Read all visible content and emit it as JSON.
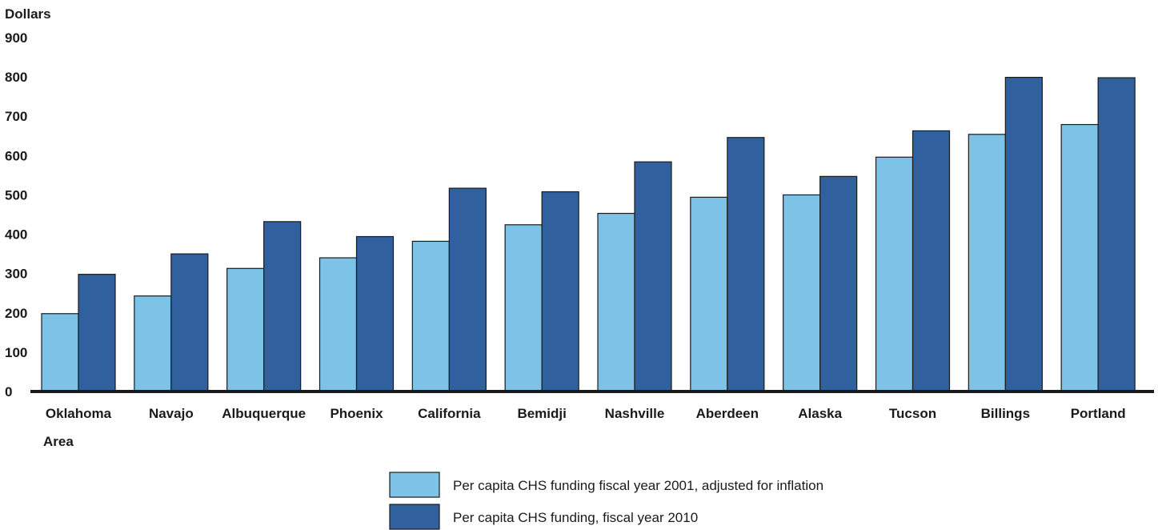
{
  "chart_data": {
    "type": "bar",
    "ylabel": "Dollars",
    "xlabel": "Area",
    "ylim": [
      0,
      900
    ],
    "yticks": [
      0,
      100,
      200,
      300,
      400,
      500,
      600,
      700,
      800,
      900
    ],
    "categories": [
      "Oklahoma",
      "Navajo",
      "Albuquerque",
      "Phoenix",
      "California",
      "Bemidji",
      "Nashville",
      "Aberdeen",
      "Alaska",
      "Tucson",
      "Billings",
      "Portland"
    ],
    "series": [
      {
        "name": "Per capita CHS funding fiscal year 2001, adjusted for inflation",
        "color": "#7dc3e8",
        "values": [
          198,
          243,
          313,
          340,
          382,
          424,
          453,
          494,
          500,
          596,
          654,
          679
        ]
      },
      {
        "name": "Per capita CHS funding, fiscal year 2010",
        "color": "#30609e",
        "values": [
          298,
          350,
          432,
          394,
          517,
          508,
          584,
          646,
          547,
          663,
          799,
          798
        ]
      }
    ],
    "grid": false,
    "legend_position": "bottom"
  }
}
